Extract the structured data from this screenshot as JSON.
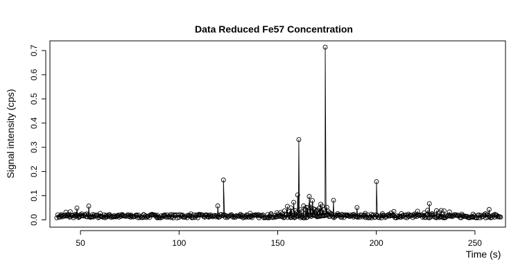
{
  "chart_data": {
    "type": "scatter",
    "title": "Data Reduced Fe57 Concentration",
    "xlabel": "Time (s)",
    "ylabel": "Signal intensity (cps)",
    "xlim": [
      34.5,
      265.5
    ],
    "ylim": [
      -0.03,
      0.74
    ],
    "x_ticks": [
      50,
      100,
      150,
      200,
      250
    ],
    "y_ticks": [
      0.0,
      0.1,
      0.2,
      0.3,
      0.4,
      0.5,
      0.6,
      0.7
    ],
    "x_tick_labels": [
      "50",
      "100",
      "150",
      "200",
      "250"
    ],
    "y_tick_labels": [
      "0.0",
      "0.1",
      "0.2",
      "0.3",
      "0.4",
      "0.5",
      "0.6",
      "0.7"
    ],
    "grid": false,
    "legend": "none",
    "line_color": "#000000",
    "marker": "open-circle",
    "time_range": [
      38,
      263
    ],
    "time_step": 0.5,
    "baseline": 0.015,
    "series": [
      {
        "values_x": [
          40.3,
          41.5,
          42.6,
          43.7,
          44.8,
          46.0,
          47.3,
          48.2,
          49.5,
          50.6,
          53.0,
          54.2,
          56.1,
          60.0,
          63.0,
          64.7,
          67.1,
          68.9,
          71.2,
          75.6,
          78.6,
          82.2,
          86.3,
          88.9,
          92.7,
          96.3,
          101.7,
          106.0,
          110.2,
          113.5,
          115.1,
          119.6,
          122.5,
          126.6,
          131.1,
          134.3,
          136.0,
          138.9,
          140.1,
          144.9,
          146.6,
          149.6,
          151.6,
          152.2,
          153.4,
          154.9,
          156.0,
          156.7,
          157.3,
          158.1,
          158.9,
          159.5,
          160.1,
          160.7,
          161.4,
          162.3,
          163.1,
          164.0,
          164.6,
          165.2,
          166.0,
          166.8,
          167.6,
          168.1,
          168.8,
          169.6,
          170.3,
          171.0,
          171.8,
          172.5,
          173.2,
          174.1,
          174.9,
          175.6,
          176.3,
          177.1,
          178.3,
          180.4,
          182.5,
          185.3,
          188.6,
          190.2,
          194.4,
          197.4,
          200.1,
          203.1,
          206.4,
          207.4,
          208.9,
          212.7,
          216.3,
          219.5,
          220.9,
          224.3,
          226.0,
          226.9,
          228.3,
          230.5,
          232.0,
          232.9,
          234.4,
          237.1,
          243.4,
          249.1,
          255.3,
          257.2,
          260.1
        ],
        "values_y": [
          0.022,
          0.018,
          0.032,
          0.022,
          0.034,
          0.018,
          0.023,
          0.049,
          0.012,
          0.025,
          0.025,
          0.057,
          0.022,
          0.027,
          0.019,
          0.022,
          0.018,
          0.019,
          0.022,
          0.02,
          0.018,
          0.021,
          0.023,
          0.019,
          0.021,
          0.022,
          0.02,
          0.025,
          0.023,
          0.021,
          0.019,
          0.058,
          0.165,
          0.021,
          0.023,
          0.021,
          0.027,
          0.02,
          0.022,
          0.022,
          0.026,
          0.03,
          0.031,
          0.025,
          0.037,
          0.056,
          0.035,
          0.05,
          0.034,
          0.073,
          0.038,
          0.03,
          0.103,
          0.332,
          0.042,
          0.034,
          0.058,
          0.043,
          0.052,
          0.05,
          0.097,
          0.065,
          0.08,
          0.046,
          0.043,
          0.038,
          0.041,
          0.048,
          0.065,
          0.057,
          0.042,
          0.714,
          0.052,
          0.036,
          0.03,
          0.026,
          0.081,
          0.026,
          0.023,
          0.021,
          0.023,
          0.051,
          0.027,
          0.023,
          0.158,
          0.026,
          0.022,
          0.028,
          0.035,
          0.026,
          0.024,
          0.025,
          0.036,
          0.029,
          0.04,
          0.067,
          0.026,
          0.038,
          0.031,
          0.039,
          0.037,
          0.033,
          0.024,
          0.024,
          0.026,
          0.043,
          0.023
        ]
      }
    ]
  }
}
